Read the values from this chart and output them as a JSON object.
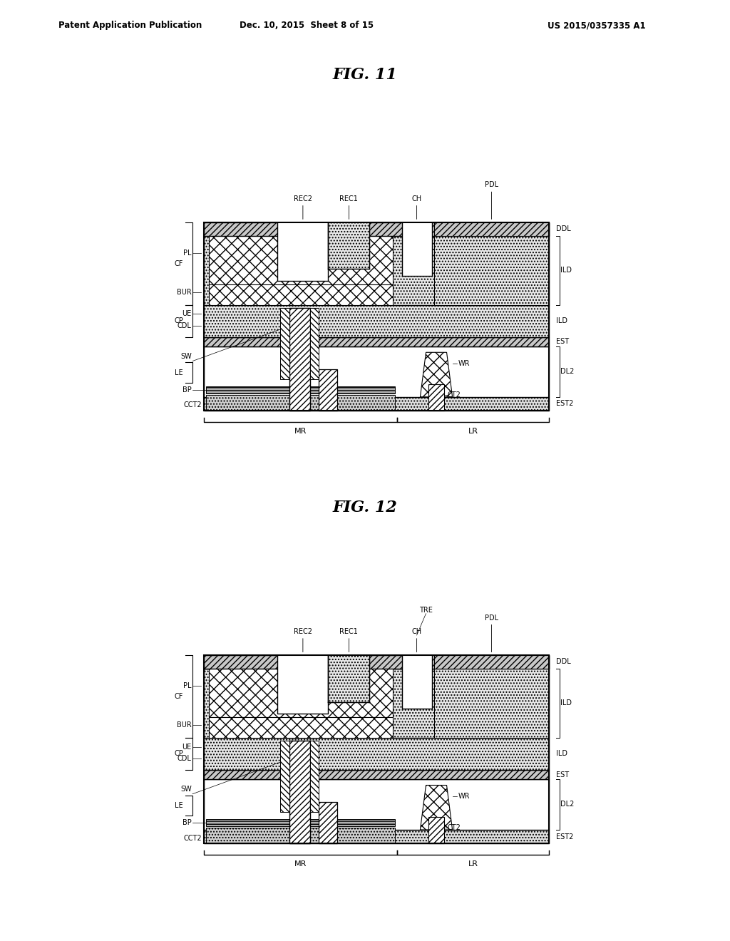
{
  "bg_color": "#ffffff",
  "header_left": "Patent Application Publication",
  "header_mid": "Dec. 10, 2015  Sheet 8 of 15",
  "header_right": "US 2015/0357335 A1",
  "fig11_title": "FIG. 11",
  "fig12_title": "FIG. 12"
}
